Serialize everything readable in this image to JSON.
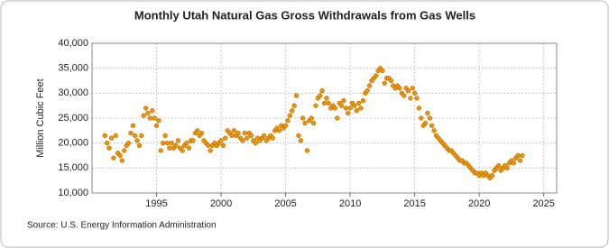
{
  "chart_data": {
    "type": "scatter",
    "title": "Monthly Utah Natural Gas Gross Withdrawals from Gas Wells",
    "y_label": "Million Cubic Feet",
    "source": "Source: U.S. Energy Information Administration",
    "xlim": [
      1990,
      2026
    ],
    "xticks": [
      1995,
      2000,
      2005,
      2010,
      2015,
      2020,
      2025
    ],
    "ylim": [
      10000,
      40000
    ],
    "yticks": [
      {
        "value": 10000,
        "label": "10,000"
      },
      {
        "value": 15000,
        "label": "15,000"
      },
      {
        "value": 20000,
        "label": "20,000"
      },
      {
        "value": 25000,
        "label": "25,000"
      },
      {
        "value": 30000,
        "label": "30,000"
      },
      {
        "value": 35000,
        "label": "35,000"
      },
      {
        "value": 40000,
        "label": "40,000"
      }
    ],
    "grid": true,
    "x": [
      1991.0,
      1991.17,
      1991.33,
      1991.5,
      1991.67,
      1991.83,
      1992.0,
      1992.17,
      1992.33,
      1992.5,
      1992.67,
      1992.83,
      1993.0,
      1993.17,
      1993.33,
      1993.5,
      1993.67,
      1993.83,
      1994.0,
      1994.17,
      1994.33,
      1994.5,
      1994.67,
      1994.83,
      1995.0,
      1995.17,
      1995.33,
      1995.5,
      1995.67,
      1995.83,
      1996.0,
      1996.17,
      1996.33,
      1996.5,
      1996.67,
      1996.83,
      1997.0,
      1997.17,
      1997.33,
      1997.5,
      1997.67,
      1997.83,
      1998.0,
      1998.17,
      1998.33,
      1998.5,
      1998.67,
      1998.83,
      1999.0,
      1999.17,
      1999.33,
      1999.5,
      1999.67,
      1999.83,
      2000.0,
      2000.17,
      2000.33,
      2000.5,
      2000.67,
      2000.83,
      2001.0,
      2001.17,
      2001.33,
      2001.5,
      2001.67,
      2001.83,
      2002.0,
      2002.17,
      2002.33,
      2002.5,
      2002.67,
      2002.83,
      2003.0,
      2003.17,
      2003.33,
      2003.5,
      2003.67,
      2003.83,
      2004.0,
      2004.17,
      2004.33,
      2004.5,
      2004.67,
      2004.83,
      2005.0,
      2005.17,
      2005.33,
      2005.5,
      2005.67,
      2005.83,
      2006.0,
      2006.17,
      2006.33,
      2006.5,
      2006.67,
      2006.83,
      2007.0,
      2007.17,
      2007.33,
      2007.5,
      2007.67,
      2007.83,
      2008.0,
      2008.17,
      2008.33,
      2008.5,
      2008.67,
      2008.83,
      2009.0,
      2009.17,
      2009.33,
      2009.5,
      2009.67,
      2009.83,
      2010.0,
      2010.17,
      2010.33,
      2010.5,
      2010.67,
      2010.83,
      2011.0,
      2011.17,
      2011.33,
      2011.5,
      2011.67,
      2011.83,
      2012.0,
      2012.17,
      2012.33,
      2012.5,
      2012.67,
      2012.83,
      2013.0,
      2013.17,
      2013.33,
      2013.5,
      2013.67,
      2013.83,
      2014.0,
      2014.17,
      2014.33,
      2014.5,
      2014.67,
      2014.83,
      2015.0,
      2015.17,
      2015.33,
      2015.5,
      2015.67,
      2015.83,
      2016.0,
      2016.17,
      2016.33,
      2016.5,
      2016.67,
      2016.83,
      2017.0,
      2017.17,
      2017.33,
      2017.5,
      2017.67,
      2017.83,
      2018.0,
      2018.17,
      2018.33,
      2018.5,
      2018.67,
      2018.83,
      2019.0,
      2019.17,
      2019.33,
      2019.5,
      2019.67,
      2019.83,
      2020.0,
      2020.17,
      2020.33,
      2020.5,
      2020.67,
      2020.83,
      2021.0,
      2021.17,
      2021.33,
      2021.5,
      2021.67,
      2021.83,
      2022.0,
      2022.17,
      2022.33,
      2022.5,
      2022.67,
      2022.83,
      2023.0,
      2023.17,
      2023.33
    ],
    "series": [
      {
        "name": "Utah Natural Gas Gross Withdrawals from Gas Wells",
        "color": "#f29400",
        "values": [
          21500,
          20000,
          19000,
          21000,
          17000,
          21500,
          18000,
          17500,
          16500,
          18500,
          19500,
          20000,
          22000,
          23500,
          21500,
          20500,
          19500,
          21500,
          25500,
          27000,
          26000,
          25000,
          26500,
          25000,
          23500,
          24500,
          18500,
          20000,
          21500,
          20000,
          19000,
          20000,
          19000,
          19500,
          20500,
          19000,
          18500,
          19500,
          20000,
          19000,
          20500,
          20500,
          22000,
          22500,
          21500,
          22000,
          20500,
          20000,
          19500,
          18500,
          19500,
          20000,
          19500,
          20000,
          20500,
          19500,
          21000,
          22500,
          22000,
          21500,
          22500,
          21500,
          22000,
          21000,
          20500,
          22000,
          21000,
          22000,
          21500,
          20500,
          20000,
          21000,
          20500,
          21000,
          21500,
          20500,
          21000,
          21500,
          21000,
          22500,
          23000,
          22500,
          23500,
          23000,
          23500,
          24500,
          25500,
          26500,
          27500,
          29500,
          21500,
          20500,
          25000,
          24000,
          18500,
          24500,
          25000,
          24000,
          27500,
          29000,
          29500,
          30500,
          28000,
          29000,
          28000,
          27000,
          27500,
          27000,
          25000,
          28000,
          27500,
          28500,
          27000,
          26000,
          27000,
          28000,
          27500,
          26500,
          28000,
          27000,
          28500,
          30000,
          30500,
          31500,
          32500,
          33000,
          33500,
          34500,
          35000,
          34500,
          32000,
          33000,
          33000,
          32500,
          31500,
          31000,
          31500,
          31000,
          30000,
          29500,
          31000,
          30500,
          29000,
          31000,
          30000,
          29000,
          27000,
          25000,
          23500,
          24000,
          26000,
          25000,
          23500,
          22500,
          21500,
          21000,
          20500,
          20000,
          19500,
          19000,
          18500,
          18500,
          18000,
          17500,
          17000,
          16500,
          16500,
          16000,
          16000,
          15500,
          15000,
          14500,
          14000,
          14000,
          13500,
          14000,
          13500,
          14000,
          13500,
          13000,
          13500,
          14500,
          15000,
          15500,
          14500,
          15000,
          15500,
          15000,
          16000,
          16500,
          16000,
          17000,
          17500,
          16500,
          17500
        ]
      }
    ]
  }
}
